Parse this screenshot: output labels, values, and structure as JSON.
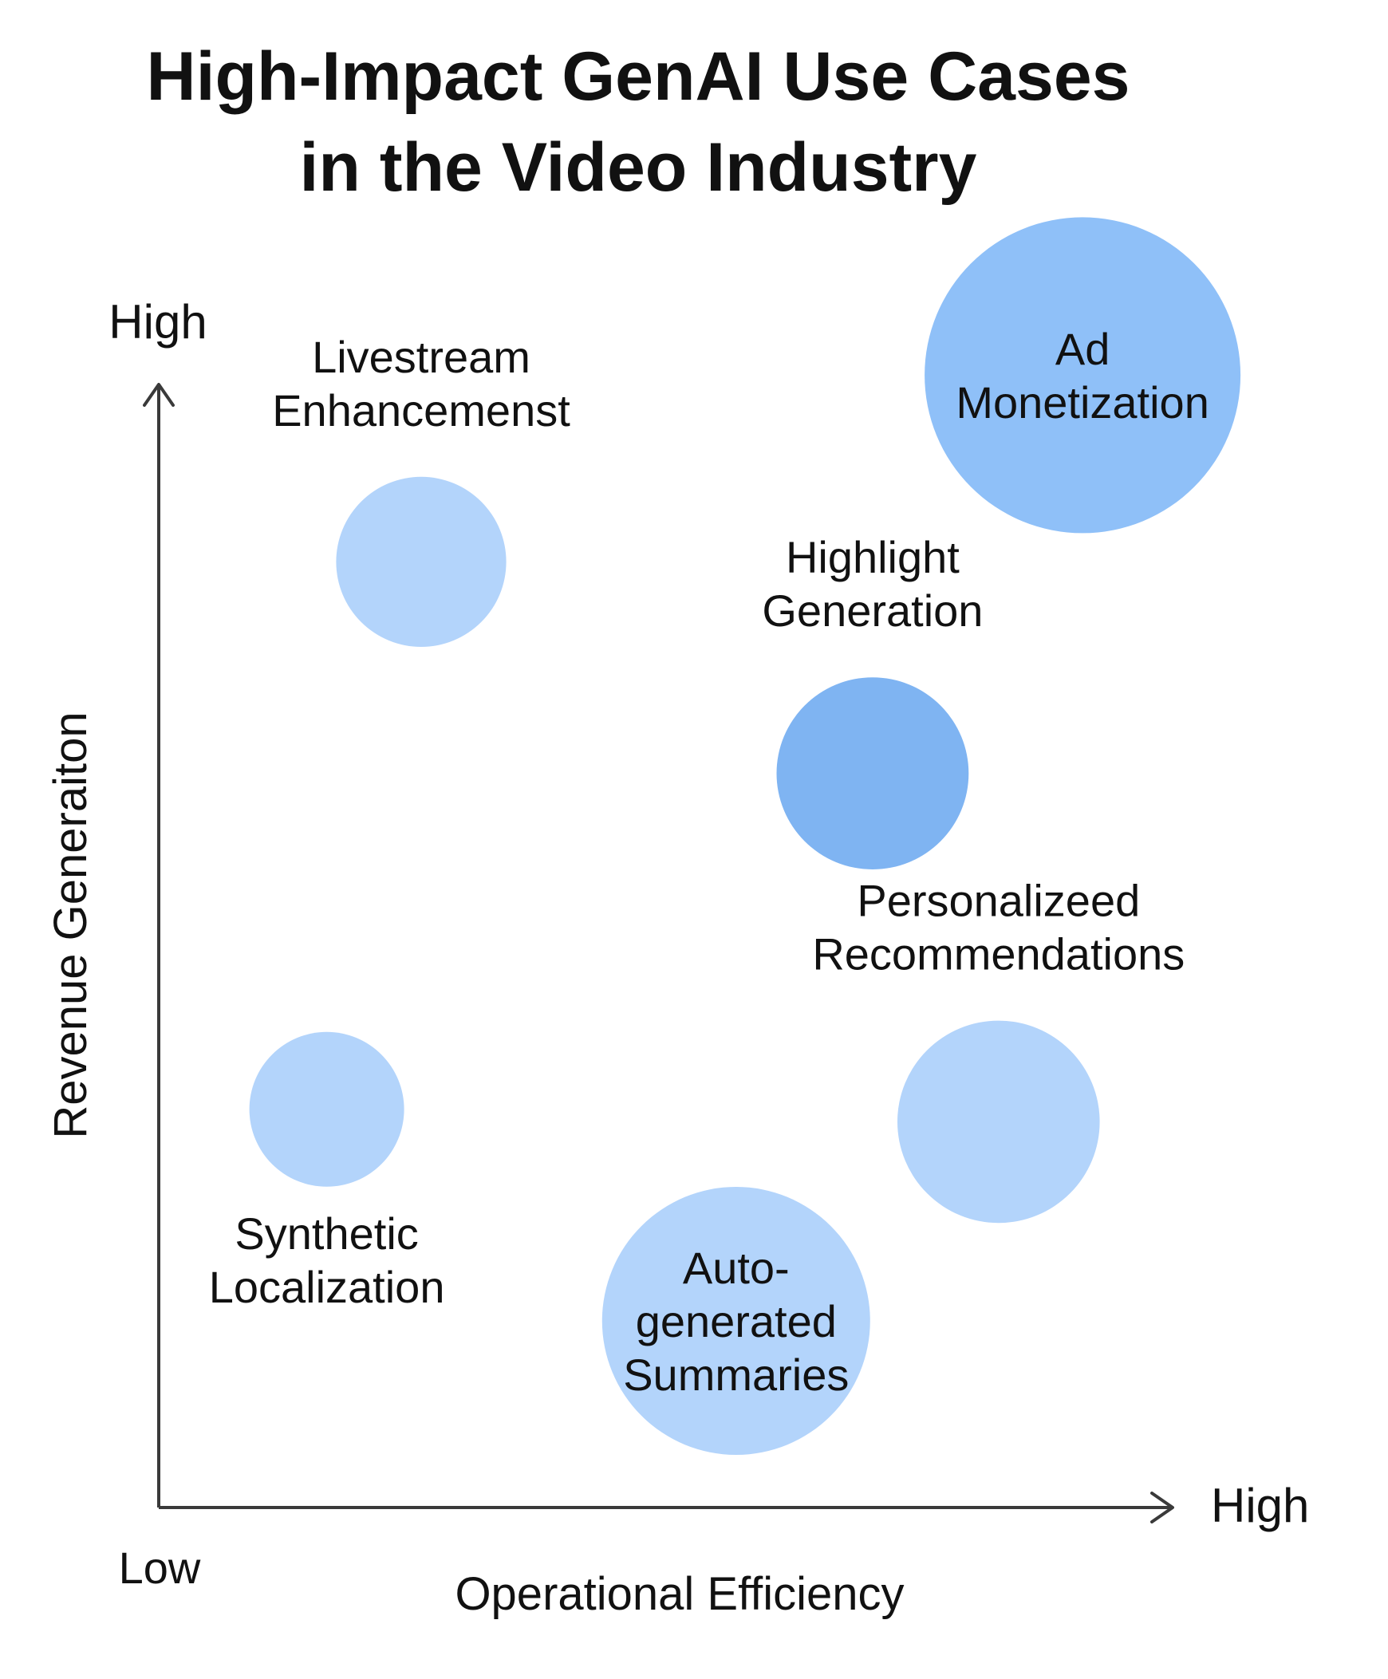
{
  "colors": {
    "bubble_light": "#b3d4fb",
    "bubble_medium": "#8fc0f8",
    "bubble_strong": "#7fb4f2",
    "axis": "#3a3a3a",
    "text": "#111111",
    "background": "#ffffff"
  },
  "chart_data": {
    "type": "scatter",
    "title": "High-Impact GenAI Use Cases\nin the Video Industry",
    "xlabel": "Operational Efficiency",
    "ylabel": "Revenue Generaiton",
    "x_high_label": "High",
    "y_high_label": "High",
    "origin_label": "Low",
    "xlim": [
      0,
      10
    ],
    "ylim": [
      0,
      10
    ],
    "grid": false,
    "legend": "none",
    "points": [
      {
        "label": "Ad\nMonetization",
        "x": 8.8,
        "y": 9.1,
        "size": 10,
        "tone": "bubble_medium",
        "label_position": "inside"
      },
      {
        "label": "Livestream\nEnhancemenst",
        "x": 2.5,
        "y": 7.6,
        "size": 2.9,
        "tone": "bubble_light",
        "label_position": "above"
      },
      {
        "label": "Highlight\nGeneration",
        "x": 6.8,
        "y": 5.9,
        "size": 3.7,
        "tone": "bubble_strong",
        "label_position": "above"
      },
      {
        "label": "Personalizeed\nRecommendations",
        "x": 8.0,
        "y": 3.1,
        "size": 4.1,
        "tone": "bubble_light",
        "label_position": "above"
      },
      {
        "label": "Synthetic\nLocalization",
        "x": 1.6,
        "y": 3.2,
        "size": 2.4,
        "tone": "bubble_light",
        "label_position": "below"
      },
      {
        "label": "Auto-\ngenerated\nSummaries",
        "x": 5.5,
        "y": 1.5,
        "size": 7.2,
        "tone": "bubble_light",
        "label_position": "inside"
      }
    ]
  }
}
